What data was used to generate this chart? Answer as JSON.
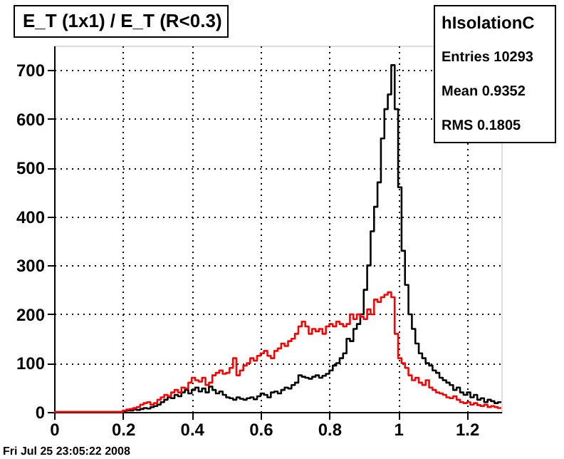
{
  "chart_data": {
    "type": "histogram",
    "title": "E_T (1x1) / E_T (R<0.3)",
    "bins": [
      0,
      0.01,
      0.02,
      0.03,
      0.04,
      0.05,
      0.06,
      0.07,
      0.08,
      0.09,
      0.1,
      0.11,
      0.12,
      0.13,
      0.14,
      0.15,
      0.16,
      0.17,
      0.18,
      0.19,
      0.2,
      0.21,
      0.22,
      0.23,
      0.24,
      0.25,
      0.26,
      0.27,
      0.28,
      0.29,
      0.3,
      0.31,
      0.32,
      0.33,
      0.34,
      0.35,
      0.36,
      0.37,
      0.38,
      0.39,
      0.4,
      0.41,
      0.42,
      0.43,
      0.44,
      0.45,
      0.46,
      0.47,
      0.48,
      0.49,
      0.5,
      0.51,
      0.52,
      0.53,
      0.54,
      0.55,
      0.56,
      0.57,
      0.58,
      0.59,
      0.6,
      0.61,
      0.62,
      0.63,
      0.64,
      0.65,
      0.66,
      0.67,
      0.68,
      0.69,
      0.7,
      0.71,
      0.72,
      0.73,
      0.74,
      0.75,
      0.76,
      0.77,
      0.78,
      0.79,
      0.8,
      0.81,
      0.82,
      0.83,
      0.84,
      0.85,
      0.86,
      0.87,
      0.88,
      0.89,
      0.9,
      0.91,
      0.92,
      0.93,
      0.94,
      0.95,
      0.96,
      0.97,
      0.98,
      0.99,
      1.0,
      1.01,
      1.02,
      1.03,
      1.04,
      1.05,
      1.06,
      1.07,
      1.08,
      1.09,
      1.1,
      1.11,
      1.12,
      1.13,
      1.14,
      1.15,
      1.16,
      1.17,
      1.18,
      1.19,
      1.2,
      1.21,
      1.22,
      1.23,
      1.24,
      1.25,
      1.26,
      1.27,
      1.28,
      1.29,
      1.3
    ],
    "series": [
      {
        "color": "#000000",
        "values": [
          0,
          0,
          0,
          0,
          0,
          0,
          0,
          0,
          0,
          0,
          0,
          0,
          0,
          0,
          0,
          0,
          0,
          0,
          0,
          0,
          2,
          3,
          3,
          5,
          4,
          6,
          8,
          7,
          10,
          12,
          15,
          20,
          25,
          30,
          28,
          35,
          32,
          40,
          45,
          38,
          45,
          50,
          42,
          48,
          40,
          52,
          45,
          38,
          42,
          35,
          30,
          28,
          25,
          30,
          27,
          25,
          28,
          30,
          26,
          32,
          38,
          35,
          30,
          40,
          42,
          38,
          45,
          50,
          48,
          55,
          60,
          75,
          72,
          70,
          68,
          72,
          75,
          70,
          74,
          78,
          85,
          95,
          100,
          110,
          120,
          150,
          145,
          170,
          180,
          200,
          250,
          300,
          370,
          420,
          470,
          560,
          620,
          650,
          710,
          620,
          460,
          330,
          260,
          200,
          170,
          140,
          120,
          110,
          100,
          95,
          85,
          80,
          70,
          65,
          60,
          55,
          45,
          50,
          40,
          35,
          40,
          30,
          35,
          25,
          28,
          20,
          25,
          22,
          18,
          20
        ]
      },
      {
        "color": "#ff0000",
        "values": [
          0,
          0,
          0,
          0,
          0,
          0,
          0,
          0,
          0,
          0,
          0,
          0,
          0,
          0,
          0,
          0,
          0,
          0,
          0,
          0,
          3,
          5,
          6,
          8,
          10,
          15,
          18,
          20,
          15,
          18,
          25,
          30,
          35,
          32,
          40,
          45,
          40,
          50,
          48,
          60,
          70,
          65,
          62,
          70,
          55,
          60,
          75,
          80,
          85,
          78,
          80,
          90,
          110,
          75,
          85,
          95,
          100,
          110,
          105,
          115,
          120,
          125,
          115,
          110,
          125,
          130,
          140,
          135,
          145,
          150,
          160,
          175,
          185,
          175,
          160,
          170,
          165,
          170,
          160,
          175,
          180,
          175,
          185,
          180,
          175,
          180,
          200,
          190,
          200,
          195,
          190,
          210,
          200,
          230,
          225,
          235,
          240,
          245,
          235,
          160,
          110,
          100,
          90,
          75,
          65,
          70,
          60,
          55,
          65,
          50,
          45,
          40,
          38,
          35,
          30,
          28,
          32,
          25,
          20,
          18,
          20,
          15,
          18,
          14,
          12,
          15,
          10,
          12,
          10,
          8
        ]
      }
    ],
    "xlim": [
      0,
      1.3
    ],
    "xticks": [
      0,
      0.2,
      0.4,
      0.6,
      0.8,
      1,
      1.2
    ],
    "ylim": [
      0,
      750
    ],
    "yticks": [
      0,
      100,
      200,
      300,
      400,
      500,
      600,
      700
    ],
    "grid": true,
    "annotations": [
      "hIsolationC",
      "Entries 10293",
      "Mean 0.9352",
      "RMS 0.1805",
      "Fri Jul 25 23:05:22 2008"
    ]
  }
}
